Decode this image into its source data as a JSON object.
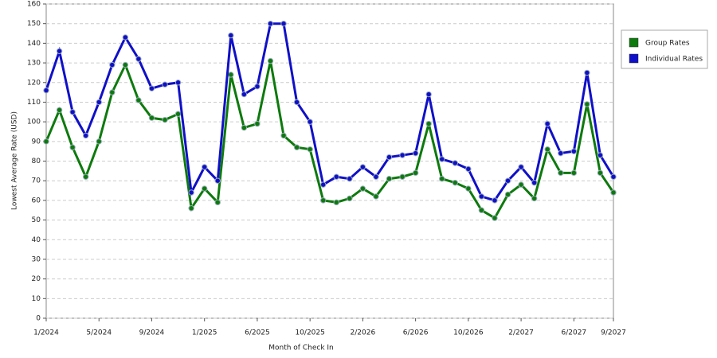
{
  "chart_data": {
    "type": "line",
    "x_label": "Month of Check In",
    "y_label": "Lowest Average Rate (USD)",
    "categories": [
      "1/2024",
      null,
      null,
      null,
      "5/2024",
      null,
      null,
      null,
      "9/2024",
      null,
      null,
      null,
      "1/2025",
      null,
      null,
      null,
      "6/2025",
      null,
      null,
      null,
      "10/2025",
      null,
      null,
      null,
      "2/2026",
      null,
      null,
      null,
      "6/2026",
      null,
      null,
      null,
      "10/2026",
      null,
      null,
      null,
      "2/2027",
      null,
      null,
      null,
      "6/2027",
      null,
      null,
      "9/2027"
    ],
    "series": [
      {
        "name": "Group Rates",
        "color": "#0d7a0d",
        "values": [
          90,
          106,
          87,
          72,
          90,
          115,
          129,
          111,
          102,
          101,
          104,
          56,
          66,
          59,
          124,
          97,
          99,
          131,
          93,
          87,
          86,
          60,
          59,
          61,
          66,
          62,
          71,
          72,
          74,
          99,
          71,
          69,
          66,
          55,
          51,
          63,
          68,
          61,
          86,
          74,
          74,
          109,
          74,
          64
        ]
      },
      {
        "name": "Individual Rates",
        "color": "#1010c8",
        "values": [
          116,
          136,
          105,
          93,
          110,
          129,
          143,
          132,
          117,
          119,
          120,
          64,
          77,
          70,
          144,
          114,
          118,
          150,
          150,
          110,
          100,
          68,
          72,
          71,
          77,
          72,
          82,
          83,
          84,
          114,
          81,
          79,
          76,
          62,
          60,
          70,
          77,
          69,
          99,
          84,
          85,
          125,
          83,
          72
        ]
      }
    ],
    "ylim": [
      0,
      160
    ],
    "yticks": [
      0,
      10,
      20,
      30,
      40,
      50,
      60,
      70,
      80,
      90,
      100,
      110,
      120,
      130,
      140,
      150,
      160
    ],
    "grid": true,
    "legend": "right"
  }
}
